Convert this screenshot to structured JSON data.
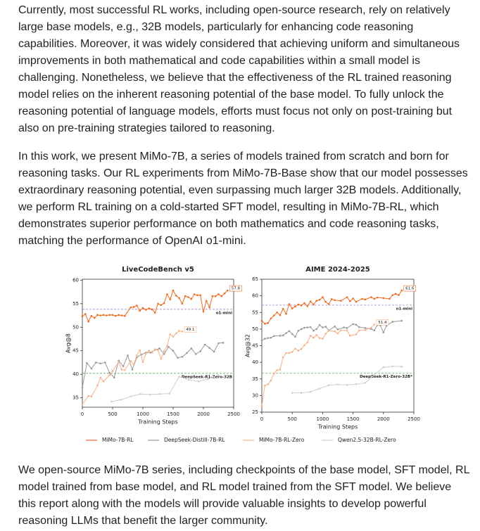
{
  "paragraphs": [
    "Currently, most successful RL works, including open-source research, rely on relatively large base models, e.g., 32B models, particularly for enhancing code reasoning capabilities. Moreover, it was widely considered that achieving uniform and simultaneous improvements in both mathematical and code capabilities within a small model is challenging. Nonetheless, we believe that the effectiveness of the RL trained reasoning model relies on the inherent reasoning potential of the base model. To fully unlock the reasoning potential of language models, efforts must focus not only on post-training but also on pre-training strategies tailored to reasoning.",
    "In this work, we present MiMo-7B, a series of models trained from scratch and born for reasoning tasks. Our RL experiments from MiMo-7B-Base show that our model possesses extraordinary reasoning potential, even surpassing much larger 32B models. Additionally, we perform RL training on a cold-started SFT model, resulting in MiMo-7B-RL, which demonstrates superior performance on both mathematics and code reasoning tasks, matching the performance of OpenAI o1-mini.",
    "We open-source MiMo-7B series, including checkpoints of the base model, SFT model, RL model trained from base model, and RL model trained from the SFT model. We believe this report along with the models will provide valuable insights to develop powerful reasoning LLMs that benefit the larger community."
  ],
  "chart_data": [
    {
      "type": "line",
      "title": "LiveCodeBench v5",
      "x_label": "Training Steps",
      "y_label": "Avg@8",
      "xlim": [
        0,
        2500
      ],
      "xticks": [
        0,
        500,
        1000,
        1500,
        2000,
        2500
      ],
      "ylim": [
        33,
        60.2
      ],
      "yticks": [
        35,
        40,
        45,
        50,
        55,
        60
      ],
      "reference_lines": [
        {
          "label": "o1-mini",
          "value": 53.8,
          "color": "#9467bd"
        },
        {
          "label": "DeepSeek-R1-Zero-32B",
          "value": 40.2,
          "color": "#2ca02c"
        }
      ],
      "series": [
        {
          "name": "MiMo-7B-RL",
          "color": "#f26b1d",
          "value_label": "57.8",
          "x": [
            0,
            50,
            100,
            150,
            200,
            250,
            300,
            350,
            400,
            450,
            500,
            550,
            600,
            650,
            700,
            800,
            850,
            900,
            950,
            1000,
            1050,
            1100,
            1150,
            1200,
            1250,
            1300,
            1350,
            1400,
            1450,
            1500,
            1550,
            1600,
            1650,
            1700,
            1750,
            1800,
            1850,
            1900,
            1950,
            2000,
            2050,
            2100,
            2150,
            2200,
            2250,
            2300,
            2350,
            2400
          ],
          "values": [
            52.3,
            52.8,
            51.2,
            52.4,
            52.0,
            52.6,
            52.5,
            52.6,
            52.5,
            52.6,
            52.6,
            52.4,
            52.6,
            52.5,
            52.4,
            54.2,
            54.3,
            54.6,
            53.5,
            54.1,
            53.7,
            54.0,
            53.8,
            53.1,
            55.0,
            54.7,
            55.1,
            57.0,
            55.9,
            57.8,
            56.7,
            56.2,
            55.0,
            56.6,
            56.4,
            56.0,
            57.0,
            56.8,
            56.8,
            53.3,
            55.6,
            54.2,
            56.6,
            56.6,
            57.0,
            56.6,
            57.2,
            57.8
          ]
        },
        {
          "name": "DeepSeek-Distill-7B-RL",
          "color": "#9a9a9a",
          "x": [
            0,
            75,
            150,
            225,
            300,
            375,
            450,
            525,
            600,
            675,
            750,
            825,
            900,
            975,
            1050,
            1125,
            1200,
            1275,
            1350,
            1425,
            1500,
            1575,
            1650,
            1725,
            1800,
            1875,
            1950,
            2025,
            2100,
            2175,
            2250,
            2325
          ],
          "values": [
            37.2,
            42.4,
            41.2,
            42.5,
            42.3,
            42.5,
            40.3,
            39.3,
            42.9,
            41.7,
            44.0,
            41.0,
            43.6,
            44.2,
            44.6,
            44.6,
            45.2,
            45.5,
            44.3,
            45.8,
            45.0,
            43.5,
            43.7,
            44.5,
            45.5,
            44.3,
            44.9,
            46.3,
            45.6,
            44.8,
            46.6,
            46.7
          ]
        },
        {
          "name": "MiMo-7B-RL-Zero",
          "color": "#f7b28a",
          "value_label": "49.1",
          "x": [
            0,
            100,
            150,
            250,
            300,
            350,
            450,
            500,
            600,
            650,
            700,
            800,
            850,
            900,
            950,
            1000,
            1050,
            1100,
            1150,
            1200,
            1250,
            1300,
            1350,
            1400,
            1450,
            1500,
            1550,
            1600,
            1650
          ],
          "values": [
            33.6,
            35.4,
            35.3,
            37.6,
            39.3,
            38.5,
            39.8,
            40.7,
            42.6,
            41.0,
            40.9,
            42.8,
            42.1,
            44.0,
            45.1,
            42.6,
            44.4,
            45.0,
            44.6,
            45.3,
            45.1,
            43.3,
            44.9,
            46.0,
            48.5,
            48.0,
            48.7,
            49.2,
            49.1
          ]
        },
        {
          "name": "Qwen2.5-32B-RL-Zero",
          "color": "#cfcfcf",
          "x": [
            480,
            640,
            800,
            960,
            1120,
            1280,
            1440,
            1600,
            1760,
            1920,
            2080,
            2240
          ],
          "values": [
            34.2,
            34.6,
            35.3,
            35.8,
            35.7,
            35.8,
            35.9,
            39.5,
            38.8,
            38.5,
            39.0,
            39.8
          ]
        }
      ]
    },
    {
      "type": "line",
      "title": "AIME 2024-2025",
      "x_label": "Training Steps",
      "y_label": "Avg@32",
      "xlim": [
        0,
        2500
      ],
      "xticks": [
        0,
        500,
        1000,
        1500,
        2000,
        2500
      ],
      "ylim": [
        25,
        65
      ],
      "yticks": [
        25,
        30,
        35,
        40,
        45,
        50,
        55,
        60,
        65
      ],
      "reference_lines": [
        {
          "label": "o1-mini",
          "value": 57.2,
          "color": "#9467bd"
        },
        {
          "label": "DeepSeek-R1-Zero-32B*",
          "value": 36.7,
          "color": "#2ca02c"
        }
      ],
      "series": [
        {
          "color": "#f26b1d",
          "value_label": "61.6",
          "x": [
            0,
            50,
            100,
            150,
            200,
            250,
            300,
            350,
            400,
            450,
            500,
            550,
            600,
            650,
            700,
            750,
            800,
            850,
            900,
            950,
            1000,
            1050,
            1100,
            1150,
            1200,
            1300,
            1400,
            1450,
            1500,
            1550,
            1650,
            1700,
            1800,
            1850,
            1900,
            2000,
            2100,
            2150,
            2200,
            2250,
            2300
          ],
          "values": [
            52.5,
            51.6,
            51.8,
            53.2,
            54.1,
            55.0,
            54.2,
            56.1,
            54.6,
            57.5,
            56.2,
            56.8,
            57.4,
            57.1,
            57.8,
            56.9,
            58.3,
            57.4,
            58.5,
            58.8,
            59.6,
            58.2,
            57.5,
            59.0,
            58.7,
            58.5,
            59.6,
            58.4,
            59.2,
            58.2,
            59.1,
            58.9,
            59.6,
            59.1,
            59.5,
            59.3,
            59.1,
            60.2,
            60.6,
            60.2,
            61.6
          ]
        },
        {
          "color": "#9a9a9a",
          "x": [
            0,
            50,
            100,
            150,
            200,
            300,
            350,
            400,
            450,
            500,
            550,
            600,
            650,
            700,
            750,
            800,
            850,
            900,
            950,
            1000,
            1050,
            1100,
            1200,
            1250,
            1350,
            1400,
            1500,
            1550,
            1600,
            1700,
            1800,
            1850,
            1900,
            1950,
            2000,
            2050,
            2150,
            2300
          ],
          "values": [
            46.6,
            47.1,
            47.3,
            47.4,
            47.9,
            48.0,
            48.1,
            48.8,
            49.4,
            48.5,
            47.7,
            49.5,
            50.0,
            50.4,
            50.5,
            50.6,
            49.5,
            50.0,
            51.2,
            50.5,
            50.7,
            49.6,
            50.8,
            49.9,
            50.5,
            50.3,
            51.5,
            51.3,
            50.6,
            50.3,
            50.0,
            49.6,
            51.2,
            51.1,
            49.0,
            51.0,
            52.2,
            52.5
          ]
        },
        {
          "color": "#f7b28a",
          "value_label": "51.4",
          "x": [
            0,
            50,
            100,
            150,
            200,
            250,
            300,
            350,
            400,
            450,
            500,
            550,
            600,
            650,
            700,
            750,
            800,
            850,
            900,
            950,
            1000,
            1050,
            1100,
            1200,
            1250,
            1300,
            1400,
            1450,
            1550,
            1600,
            1700,
            1800,
            1850
          ],
          "values": [
            26.9,
            33.0,
            33.4,
            34.5,
            36.6,
            37.6,
            37.8,
            41.5,
            42.8,
            42.8,
            43.1,
            44.1,
            43.5,
            44.0,
            45.1,
            46.0,
            48.0,
            47.4,
            48.2,
            47.3,
            47.1,
            48.6,
            49.5,
            49.3,
            48.7,
            49.6,
            49.6,
            48.0,
            48.4,
            49.6,
            49.7,
            50.4,
            51.4
          ]
        },
        {
          "color": "#cfcfcf",
          "x": [
            500,
            650,
            800,
            950,
            1100,
            1250,
            1400,
            1550,
            1700,
            1850,
            2000,
            2150,
            2300
          ],
          "values": [
            30.8,
            30.8,
            31.1,
            32.1,
            33.1,
            33.3,
            33.2,
            33.4,
            33.8,
            36.2,
            38.5,
            38.8,
            38.7
          ]
        }
      ]
    }
  ]
}
